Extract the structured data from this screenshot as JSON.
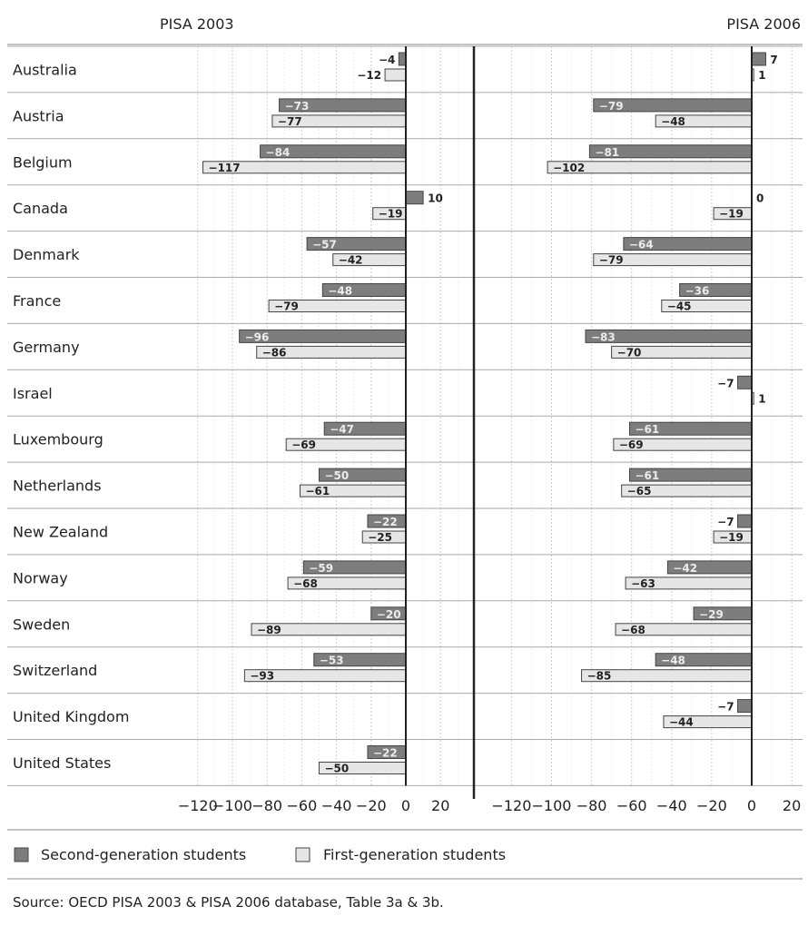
{
  "chart_data": {
    "type": "bar",
    "orientation": "horizontal",
    "categories": [
      "Australia",
      "Austria",
      "Belgium",
      "Canada",
      "Denmark",
      "France",
      "Germany",
      "Israel",
      "Luxembourg",
      "Netherlands",
      "New Zealand",
      "Norway",
      "Sweden",
      "Switzerland",
      "United Kingdom",
      "United States"
    ],
    "panels": [
      {
        "title": "PISA 2003",
        "series": [
          {
            "name": "Second-generation students",
            "values": [
              -4,
              -73,
              -84,
              10,
              -57,
              -48,
              -96,
              null,
              -47,
              -50,
              -22,
              -59,
              -20,
              -53,
              null,
              -22
            ]
          },
          {
            "name": "First-generation students",
            "values": [
              -12,
              -77,
              -117,
              -19,
              -42,
              -79,
              -86,
              null,
              -69,
              -61,
              -25,
              -68,
              -89,
              -93,
              null,
              -50
            ]
          }
        ],
        "xlim": [
          -130,
          35
        ],
        "xticks": [
          -120,
          -100,
          -80,
          -60,
          -40,
          -20,
          0,
          20
        ]
      },
      {
        "title": "PISA 2006",
        "series": [
          {
            "name": "Second-generation students",
            "values": [
              7,
              -79,
              -81,
              0,
              -64,
              -36,
              -83,
              -7,
              -61,
              -61,
              -7,
              -42,
              -29,
              -48,
              -7,
              null
            ]
          },
          {
            "name": "First-generation students",
            "values": [
              1,
              -48,
              -102,
              -19,
              -79,
              -45,
              -70,
              1,
              -69,
              -65,
              -19,
              -63,
              -68,
              -85,
              -44,
              null
            ]
          }
        ],
        "xlim": [
          -130,
          35
        ],
        "xticks": [
          -120,
          -100,
          -80,
          -60,
          -40,
          -20,
          0,
          20
        ]
      }
    ],
    "grid": true,
    "legend_position": "bottom",
    "colors": {
      "second_generation": "#7d7d7d",
      "first_generation": "#e6e6e6",
      "bar_stroke": "#444444"
    }
  },
  "source": "Source: OECD PISA 2003 & PISA 2006 database, Table 3a & 3b."
}
